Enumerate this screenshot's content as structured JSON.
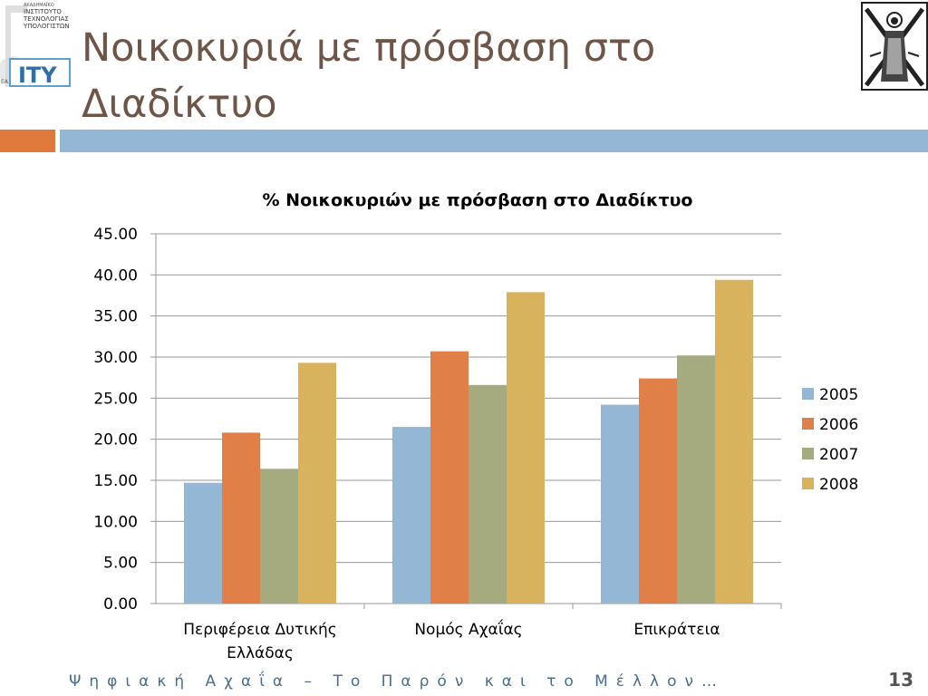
{
  "slide": {
    "title": "Νοικοκυριά με πρόσβαση στο Διαδίκτυο",
    "footer": "Ψηφιακή Αχαΐα – Το Παρόν και το Μέλλον…",
    "page_number": "13",
    "logo_left": {
      "text_lines": [
        "ΑΚΑΔΗΜΑΪΚΟ",
        "ΙΝΣΤΙΤΟΥΤΟ",
        "ΤΕΧΝΟΛΟΓΙΑΣ",
        "ΥΠΟΛΟΓΙΣΤΩΝ"
      ],
      "mark": "ΙΤΥ",
      "side_text": "ΕΑ"
    },
    "logo_right": {
      "description_icon": "saint-andrew-emblem-icon"
    },
    "colors": {
      "title": "#6e5548",
      "accent_orange": "#e07a3c",
      "accent_blue": "#94b7d6",
      "footer": "#4a6e8c"
    }
  },
  "chart_data": {
    "type": "bar",
    "title": "% Νοικοκυριών με πρόσβαση στο Διαδίκτυο",
    "categories": [
      "Περιφέρεια Δυτικής Ελλάδας",
      "Νομός Αχαΐας",
      "Επικράτεια"
    ],
    "category_label_lines": [
      [
        "Περιφέρεια Δυτικής",
        "Ελλάδας"
      ],
      [
        "Νομός Αχαΐας"
      ],
      [
        "Επικράτεια"
      ]
    ],
    "series": [
      {
        "name": "2005",
        "color": "#94b7d6",
        "values": [
          14.7,
          21.5,
          24.2
        ]
      },
      {
        "name": "2006",
        "color": "#e07f47",
        "values": [
          20.8,
          30.7,
          27.4
        ]
      },
      {
        "name": "2007",
        "color": "#a5ab7e",
        "values": [
          16.4,
          26.6,
          30.2
        ]
      },
      {
        "name": "2008",
        "color": "#d9b25e",
        "values": [
          29.3,
          37.9,
          39.4
        ]
      }
    ],
    "ylim": [
      0,
      45
    ],
    "yticks": [
      "0.00",
      "5.00",
      "10.00",
      "15.00",
      "20.00",
      "25.00",
      "30.00",
      "35.00",
      "40.00",
      "45.00"
    ],
    "grid": true,
    "legend_position": "right"
  }
}
